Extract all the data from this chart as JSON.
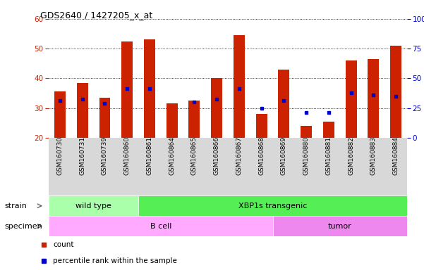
{
  "title": "GDS2640 / 1427205_x_at",
  "samples": [
    "GSM160730",
    "GSM160731",
    "GSM160739",
    "GSM160860",
    "GSM160861",
    "GSM160864",
    "GSM160865",
    "GSM160866",
    "GSM160867",
    "GSM160868",
    "GSM160869",
    "GSM160880",
    "GSM160881",
    "GSM160882",
    "GSM160883",
    "GSM160884"
  ],
  "counts": [
    35.5,
    38.5,
    33.5,
    52.5,
    53.0,
    31.5,
    32.5,
    40.0,
    54.5,
    28.0,
    43.0,
    24.0,
    25.5,
    46.0,
    46.5,
    51.0
  ],
  "percentile_vals": [
    32.5,
    33.0,
    31.5,
    36.5,
    36.5,
    null,
    32.0,
    33.0,
    36.5,
    30.0,
    32.5,
    28.5,
    28.5,
    35.0,
    34.5,
    34.0
  ],
  "ymin": 20,
  "ymax": 60,
  "yticks_left": [
    20,
    30,
    40,
    50,
    60
  ],
  "bar_color": "#cc2200",
  "dot_color": "#0000cc",
  "bar_bottom": 20,
  "strain_groups": [
    {
      "label": "wild type",
      "start": 0,
      "end": 4,
      "color": "#aaffaa"
    },
    {
      "label": "XBP1s transgenic",
      "start": 4,
      "end": 16,
      "color": "#55ee55"
    }
  ],
  "specimen_groups": [
    {
      "label": "B cell",
      "start": 0,
      "end": 10,
      "color": "#ffaaff"
    },
    {
      "label": "tumor",
      "start": 10,
      "end": 16,
      "color": "#ee88ee"
    }
  ],
  "legend_count_label": "count",
  "legend_pct_label": "percentile rank within the sample",
  "bg_color": "#d8d8d8",
  "strain_label": "strain",
  "specimen_label": "specimen"
}
